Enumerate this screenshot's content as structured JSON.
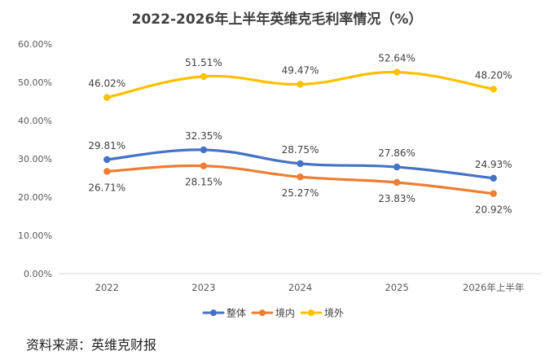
{
  "chart_data": {
    "type": "line",
    "title": "2022-2026年上半年英维克毛利率情况（%）",
    "categories": [
      "2022",
      "2023",
      "2024",
      "2025",
      "2026年上半年"
    ],
    "ylim": [
      0,
      60
    ],
    "ytick_step": 10,
    "ytick_format": "percent_2dp",
    "grid": false,
    "legend_position": "bottom",
    "series": [
      {
        "name": "整体",
        "color": "#4472C4",
        "values": [
          29.81,
          32.35,
          28.75,
          27.86,
          24.93
        ],
        "labels": [
          "29.81%",
          "32.35%",
          "28.75%",
          "27.86%",
          "24.93%"
        ],
        "label_side": "above"
      },
      {
        "name": "境内",
        "color": "#ED7D31",
        "values": [
          26.71,
          28.15,
          25.27,
          23.83,
          20.92
        ],
        "labels": [
          "26.71%",
          "28.15%",
          "25.27%",
          "23.83%",
          "20.92%"
        ],
        "label_side": "below"
      },
      {
        "name": "境外",
        "color": "#FFC000",
        "values": [
          46.02,
          51.51,
          49.47,
          52.64,
          48.2
        ],
        "labels": [
          "46.02%",
          "51.51%",
          "49.47%",
          "52.64%",
          "48.20%"
        ],
        "label_side": "above"
      }
    ]
  },
  "source": "资料来源：英维克财报"
}
